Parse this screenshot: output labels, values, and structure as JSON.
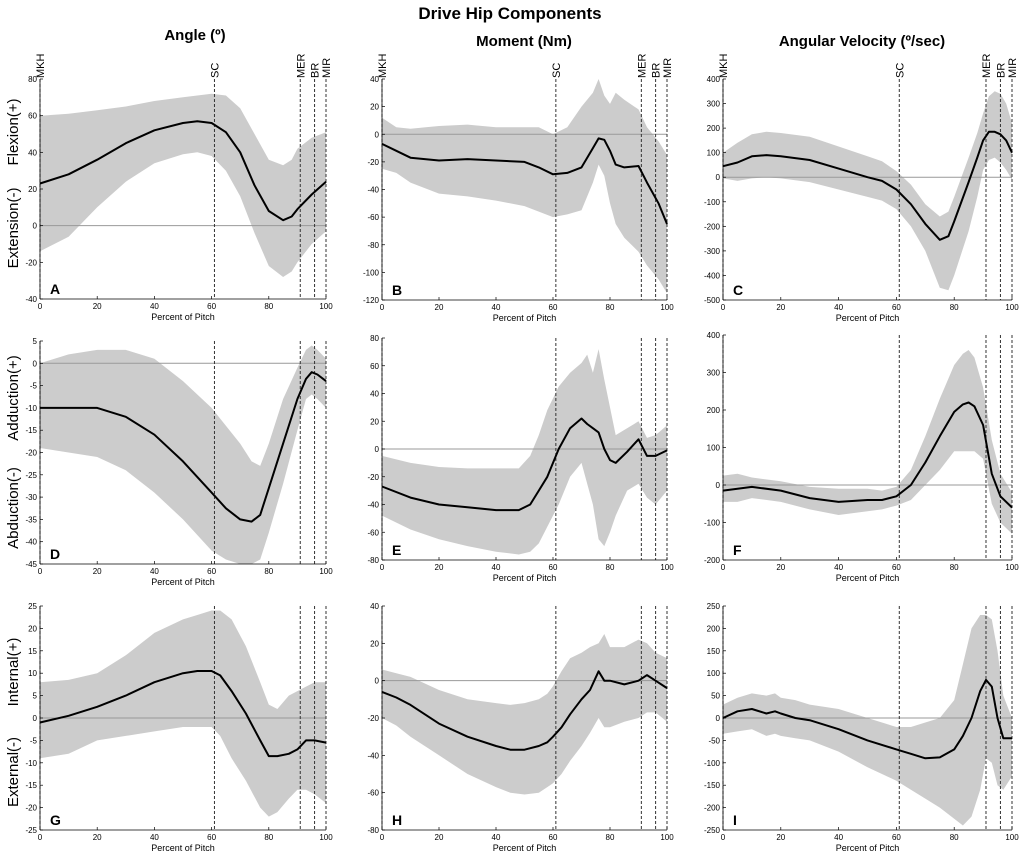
{
  "figure": {
    "title": "Drive Hip Components",
    "column_titles": [
      "Angle (º)",
      "Moment (Nm)",
      "Angular Velocity (º/sec)"
    ],
    "row_labels": [
      {
        "pos": "Flexion(+)",
        "neg": "Extension(-)"
      },
      {
        "pos": "Adduction(+)",
        "neg": "Abduction(-)"
      },
      {
        "pos": "Internal(+)",
        "neg": "External(-)"
      }
    ],
    "events": [
      {
        "label": "MKH",
        "x": 0
      },
      {
        "label": "SC",
        "x": 61
      },
      {
        "label": "MER",
        "x": 91
      },
      {
        "label": "BR",
        "x": 96
      },
      {
        "label": "MIR",
        "x": 100
      }
    ],
    "colors": {
      "band": "#cccccc",
      "mean": "#000000",
      "zero": "#999999",
      "event": "#333333"
    }
  },
  "chart_data": [
    {
      "id": "A",
      "type": "line",
      "panel_label": "A",
      "xlabel": "Percent of Pitch",
      "ylabel": "",
      "xlim": [
        0,
        100
      ],
      "ylim": [
        -40,
        80
      ],
      "xticks": [
        0,
        20,
        40,
        60,
        80,
        100
      ],
      "yticks": [
        -40,
        -20,
        0,
        20,
        40,
        60,
        80
      ],
      "show_event_labels": true,
      "x": [
        0,
        10,
        20,
        30,
        40,
        50,
        55,
        60,
        65,
        70,
        75,
        80,
        85,
        88,
        90,
        95,
        100
      ],
      "mean": [
        23,
        28,
        36,
        45,
        52,
        56,
        57,
        56,
        51,
        40,
        22,
        8,
        3,
        5,
        9,
        17,
        24
      ],
      "upper": [
        60,
        61,
        63,
        65,
        68,
        70,
        71,
        72,
        71,
        64,
        50,
        36,
        33,
        36,
        42,
        48,
        51
      ],
      "lower": [
        -14,
        -6,
        10,
        24,
        34,
        39,
        40,
        38,
        30,
        16,
        -4,
        -22,
        -28,
        -25,
        -20,
        -10,
        -3
      ]
    },
    {
      "id": "B",
      "type": "line",
      "panel_label": "B",
      "xlabel": "Percent of Pitch",
      "ylabel": "",
      "xlim": [
        0,
        100
      ],
      "ylim": [
        -120,
        40
      ],
      "xticks": [
        0,
        20,
        40,
        60,
        80,
        100
      ],
      "yticks": [
        -120,
        -100,
        -80,
        -60,
        -40,
        -20,
        0,
        20,
        40
      ],
      "show_event_labels": true,
      "x": [
        0,
        5,
        10,
        20,
        30,
        40,
        50,
        55,
        60,
        65,
        70,
        74,
        76,
        78,
        80,
        82,
        85,
        90,
        93,
        97,
        100
      ],
      "mean": [
        -7,
        -12,
        -17,
        -19,
        -18,
        -19,
        -20,
        -24,
        -29,
        -28,
        -24,
        -10,
        -3,
        -4,
        -12,
        -22,
        -24,
        -23,
        -35,
        -50,
        -65
      ],
      "upper": [
        12,
        5,
        4,
        6,
        7,
        5,
        5,
        5,
        0,
        5,
        20,
        30,
        40,
        28,
        22,
        30,
        25,
        18,
        5,
        -5,
        -15
      ],
      "lower": [
        -25,
        -28,
        -35,
        -43,
        -45,
        -48,
        -52,
        -56,
        -60,
        -58,
        -55,
        -35,
        -22,
        -30,
        -50,
        -65,
        -75,
        -85,
        -95,
        -105,
        -115
      ]
    },
    {
      "id": "C",
      "type": "line",
      "panel_label": "C",
      "xlabel": "Percent of Pitch",
      "ylabel": "",
      "xlim": [
        0,
        100
      ],
      "ylim": [
        -500,
        400
      ],
      "xticks": [
        0,
        20,
        40,
        60,
        80,
        100
      ],
      "yticks": [
        -500,
        -400,
        -300,
        -200,
        -100,
        0,
        100,
        200,
        300,
        400
      ],
      "show_event_labels": true,
      "x": [
        0,
        5,
        10,
        15,
        20,
        30,
        40,
        50,
        55,
        60,
        65,
        70,
        75,
        78,
        80,
        85,
        88,
        90,
        92,
        94,
        96,
        98,
        100
      ],
      "mean": [
        45,
        60,
        85,
        90,
        85,
        70,
        35,
        0,
        -15,
        -50,
        -110,
        -190,
        -255,
        -240,
        -180,
        -20,
        80,
        150,
        185,
        185,
        175,
        150,
        100
      ],
      "upper": [
        100,
        140,
        175,
        185,
        180,
        165,
        125,
        85,
        65,
        25,
        -30,
        -110,
        -160,
        -140,
        -80,
        80,
        180,
        260,
        330,
        350,
        340,
        300,
        220
      ],
      "lower": [
        -5,
        -15,
        -5,
        0,
        -5,
        -20,
        -50,
        -80,
        -95,
        -130,
        -200,
        -300,
        -450,
        -460,
        -400,
        -220,
        -80,
        30,
        70,
        80,
        60,
        30,
        -10
      ]
    },
    {
      "id": "D",
      "type": "line",
      "panel_label": "D",
      "xlabel": "Percent of Pitch",
      "ylabel": "",
      "xlim": [
        0,
        100
      ],
      "ylim": [
        -45,
        5
      ],
      "xticks": [
        0,
        20,
        40,
        60,
        80,
        100
      ],
      "yticks": [
        -45,
        -40,
        -35,
        -30,
        -25,
        -20,
        -15,
        -10,
        -5,
        0,
        5
      ],
      "show_event_labels": false,
      "x": [
        0,
        10,
        20,
        30,
        40,
        50,
        60,
        65,
        70,
        74,
        77,
        80,
        85,
        90,
        93,
        95,
        97,
        100
      ],
      "mean": [
        -10,
        -10,
        -10,
        -12,
        -16,
        -22,
        -29,
        -32.5,
        -35,
        -35.5,
        -34,
        -28,
        -18,
        -8,
        -3.5,
        -2,
        -2.5,
        -4
      ],
      "upper": [
        0,
        2,
        3,
        3,
        1,
        -4,
        -10,
        -14,
        -18,
        -22,
        -23,
        -18,
        -8,
        -1,
        3,
        4,
        3,
        1
      ],
      "lower": [
        -19,
        -20,
        -21,
        -24,
        -29,
        -35,
        -42,
        -44,
        -45,
        -45,
        -44,
        -38,
        -27,
        -15,
        -8,
        -7,
        -8,
        -10
      ]
    },
    {
      "id": "E",
      "type": "line",
      "panel_label": "E",
      "xlabel": "Percent of Pitch",
      "ylabel": "",
      "xlim": [
        0,
        100
      ],
      "ylim": [
        -80,
        80
      ],
      "xticks": [
        0,
        20,
        40,
        60,
        80,
        100
      ],
      "yticks": [
        -80,
        -60,
        -40,
        -20,
        0,
        20,
        40,
        60,
        80
      ],
      "show_event_labels": false,
      "x": [
        0,
        10,
        20,
        30,
        40,
        48,
        52,
        55,
        58,
        62,
        66,
        70,
        72,
        74,
        76,
        78,
        80,
        82,
        86,
        90,
        93,
        96,
        100
      ],
      "mean": [
        -27,
        -35,
        -40,
        -42,
        -44,
        -44,
        -40,
        -30,
        -20,
        0,
        15,
        22,
        18,
        15,
        12,
        0,
        -8,
        -10,
        -2,
        7,
        -5,
        -5,
        -1
      ],
      "upper": [
        -5,
        -10,
        -13,
        -14,
        -14,
        -14,
        -5,
        10,
        28,
        45,
        55,
        62,
        68,
        55,
        72,
        50,
        30,
        10,
        15,
        20,
        8,
        10,
        17
      ],
      "lower": [
        -48,
        -58,
        -65,
        -70,
        -74,
        -76,
        -74,
        -68,
        -56,
        -40,
        -20,
        -10,
        -25,
        -40,
        -65,
        -70,
        -60,
        -48,
        -30,
        -25,
        -35,
        -40,
        -30
      ]
    },
    {
      "id": "F",
      "type": "line",
      "panel_label": "F",
      "xlabel": "Percent of Pitch",
      "ylabel": "",
      "xlim": [
        0,
        100
      ],
      "ylim": [
        -200,
        400
      ],
      "xticks": [
        0,
        20,
        40,
        60,
        80,
        100
      ],
      "yticks": [
        -200,
        -100,
        0,
        100,
        200,
        300,
        400
      ],
      "show_event_labels": false,
      "x": [
        0,
        5,
        10,
        20,
        30,
        40,
        50,
        55,
        60,
        65,
        70,
        75,
        80,
        83,
        85,
        87,
        90,
        93,
        96,
        100
      ],
      "mean": [
        -15,
        -10,
        -5,
        -15,
        -35,
        -45,
        -40,
        -40,
        -30,
        0,
        60,
        130,
        195,
        215,
        220,
        210,
        160,
        30,
        -30,
        -60
      ],
      "upper": [
        25,
        30,
        20,
        10,
        -5,
        -10,
        -10,
        -15,
        -5,
        40,
        130,
        230,
        320,
        350,
        360,
        340,
        260,
        120,
        30,
        -20
      ],
      "lower": [
        -45,
        -45,
        -35,
        -45,
        -65,
        -80,
        -70,
        -65,
        -55,
        -40,
        0,
        40,
        90,
        90,
        90,
        90,
        70,
        -50,
        -100,
        -130
      ]
    },
    {
      "id": "G",
      "type": "line",
      "panel_label": "G",
      "xlabel": "Percent of Pitch",
      "ylabel": "",
      "xlim": [
        0,
        100
      ],
      "ylim": [
        -25,
        25
      ],
      "xticks": [
        0,
        20,
        40,
        60,
        80,
        100
      ],
      "yticks": [
        -25,
        -20,
        -15,
        -10,
        -5,
        0,
        5,
        10,
        15,
        20,
        25
      ],
      "show_event_labels": false,
      "x": [
        0,
        10,
        20,
        30,
        40,
        50,
        55,
        60,
        63,
        67,
        72,
        77,
        80,
        83,
        87,
        90,
        93,
        96,
        100
      ],
      "mean": [
        -1,
        0.5,
        2.5,
        5,
        8,
        10,
        10.5,
        10.5,
        9.5,
        6,
        1,
        -5,
        -8.5,
        -8.5,
        -8,
        -7,
        -5,
        -5,
        -5.5
      ],
      "upper": [
        8,
        8.5,
        10,
        14,
        19,
        22,
        23,
        24,
        24,
        22,
        16,
        8,
        3,
        2,
        5,
        6,
        7,
        8,
        8
      ],
      "lower": [
        -9,
        -8,
        -5,
        -4,
        -3,
        -2,
        -2,
        -2,
        -4,
        -9,
        -14,
        -20,
        -22,
        -21,
        -18,
        -16,
        -16,
        -17,
        -19
      ]
    },
    {
      "id": "H",
      "type": "line",
      "panel_label": "H",
      "xlabel": "Percent of Pitch",
      "ylabel": "",
      "xlim": [
        0,
        100
      ],
      "ylim": [
        -80,
        40
      ],
      "xticks": [
        0,
        20,
        40,
        60,
        80,
        100
      ],
      "yticks": [
        -80,
        -60,
        -40,
        -20,
        0,
        20,
        40
      ],
      "show_event_labels": false,
      "x": [
        0,
        5,
        10,
        20,
        30,
        40,
        45,
        50,
        55,
        58,
        60,
        63,
        66,
        70,
        73,
        76,
        78,
        80,
        85,
        90,
        93,
        96,
        100
      ],
      "mean": [
        -6,
        -9,
        -13,
        -23,
        -30,
        -35,
        -37,
        -37,
        -35,
        -33,
        -30,
        -25,
        -18,
        -10,
        -5,
        5,
        0,
        0,
        -2,
        0,
        3,
        0,
        -4
      ],
      "upper": [
        6,
        4,
        2,
        -5,
        -10,
        -12,
        -13,
        -12,
        -10,
        -7,
        -3,
        5,
        12,
        15,
        18,
        20,
        25,
        18,
        18,
        22,
        20,
        15,
        12
      ],
      "lower": [
        -20,
        -24,
        -30,
        -40,
        -50,
        -57,
        -60,
        -61,
        -60,
        -57,
        -55,
        -50,
        -43,
        -35,
        -28,
        -20,
        -25,
        -25,
        -22,
        -20,
        -17,
        -17,
        -22
      ]
    },
    {
      "id": "I",
      "type": "line",
      "panel_label": "I",
      "xlabel": "Percent of Pitch",
      "ylabel": "",
      "xlim": [
        0,
        100
      ],
      "ylim": [
        -250,
        250
      ],
      "xticks": [
        0,
        20,
        40,
        60,
        80,
        100
      ],
      "yticks": [
        -250,
        -200,
        -150,
        -100,
        -50,
        0,
        50,
        100,
        150,
        200,
        250
      ],
      "show_event_labels": false,
      "x": [
        0,
        5,
        10,
        15,
        18,
        20,
        25,
        30,
        40,
        50,
        60,
        65,
        70,
        75,
        80,
        83,
        86,
        89,
        91,
        93,
        95,
        97,
        100
      ],
      "mean": [
        0,
        15,
        20,
        10,
        15,
        10,
        0,
        -5,
        -25,
        -50,
        -70,
        -80,
        -90,
        -88,
        -70,
        -40,
        0,
        60,
        85,
        70,
        0,
        -45,
        -45
      ],
      "upper": [
        30,
        45,
        55,
        50,
        55,
        45,
        40,
        30,
        20,
        0,
        -20,
        -20,
        -10,
        0,
        40,
        120,
        200,
        230,
        230,
        220,
        150,
        50,
        0
      ],
      "lower": [
        -35,
        -30,
        -25,
        -40,
        -35,
        -40,
        -45,
        -50,
        -75,
        -110,
        -140,
        -160,
        -180,
        -200,
        -225,
        -240,
        -220,
        -160,
        -90,
        -100,
        -150,
        -160,
        -130
      ]
    }
  ]
}
